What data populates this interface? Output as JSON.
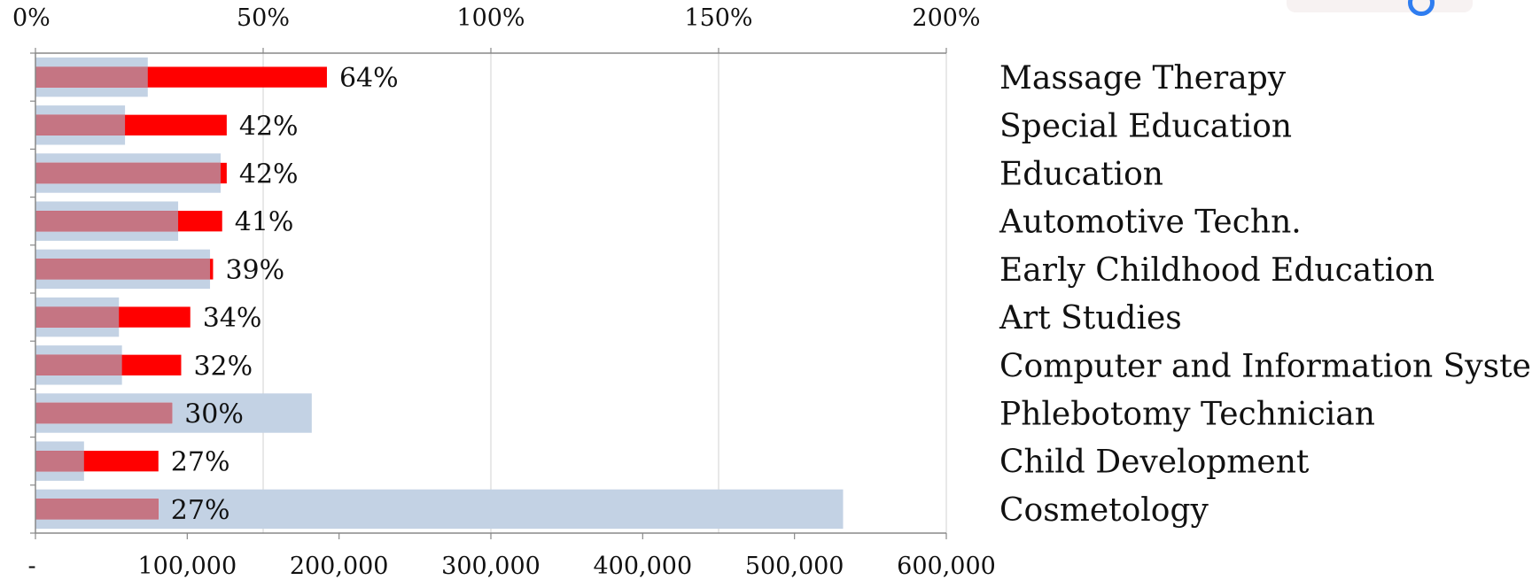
{
  "chart_data": {
    "type": "bar",
    "orientation": "horizontal",
    "categories": [
      "Massage Therapy",
      "Special Education",
      "Education",
      "Automotive Techn.",
      "Early Childhood Education",
      "Art Studies",
      "Computer and Information Systems",
      "Phlebotomy Technician",
      "Child Development",
      "Cosmetology"
    ],
    "series": [
      {
        "axis": "bottom",
        "color": "#c3d2e4",
        "values": [
          74000,
          59000,
          122000,
          94000,
          115000,
          55000,
          57000,
          182000,
          32000,
          532000
        ]
      },
      {
        "axis": "top",
        "color": "#ff0000",
        "values": [
          64,
          42,
          42,
          41,
          39,
          34,
          32,
          30,
          27,
          27
        ],
        "value_labels": [
          "64%",
          "42%",
          "42%",
          "41%",
          "39%",
          "34%",
          "32%",
          "30%",
          "27%",
          "27%"
        ]
      }
    ],
    "top_axis": {
      "range": [
        0,
        200
      ],
      "ticks": [
        0,
        50,
        100,
        150,
        200
      ],
      "tick_labels": [
        "0%",
        "50%",
        "100%",
        "150%",
        "200%"
      ]
    },
    "bottom_axis": {
      "range": [
        0,
        600000
      ],
      "ticks": [
        0,
        100000,
        200000,
        300000,
        400000,
        500000,
        600000
      ],
      "tick_labels": [
        "-",
        "100,000",
        "200,000",
        "300,000",
        "400,000",
        "500,000",
        "600,000"
      ]
    },
    "overlap_color": "#c57583",
    "grid": true,
    "legend": "none",
    "title": "",
    "xlabel": "",
    "ylabel": ""
  },
  "corner_badge_color": "#2f7df0"
}
